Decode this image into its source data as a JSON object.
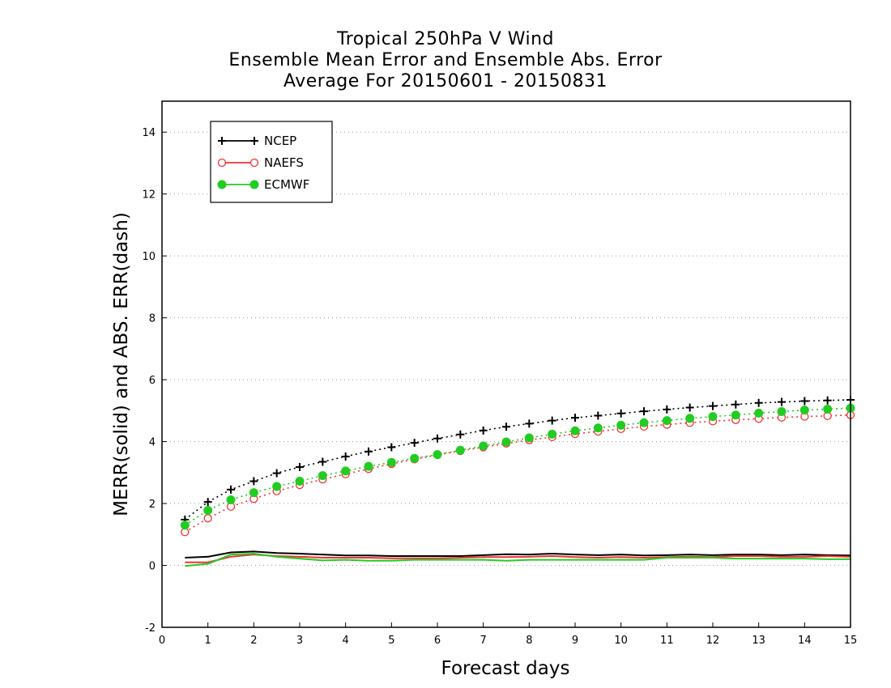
{
  "chart_data": {
    "type": "line",
    "title_lines": [
      "Tropical 250hPa V Wind",
      "Ensemble Mean Error and Ensemble Abs. Error",
      "Average For 20150601 - 20150831"
    ],
    "xlabel": "Forecast days",
    "ylabel": "MERR(solid) and ABS. ERR(dash)",
    "xlim": [
      0,
      15
    ],
    "ylim": [
      -2,
      15
    ],
    "xticks": [
      "0",
      "1",
      "2",
      "3",
      "4",
      "5",
      "6",
      "7",
      "8",
      "9",
      "10",
      "11",
      "12",
      "13",
      "14",
      "15"
    ],
    "yticks": [
      "-2",
      "0",
      "2",
      "4",
      "6",
      "8",
      "10",
      "12",
      "14"
    ],
    "grid": "horizontal dotted",
    "legend_position": "top-left",
    "x": [
      0.5,
      1,
      1.5,
      2,
      2.5,
      3,
      3.5,
      4,
      4.5,
      5,
      5.5,
      6,
      6.5,
      7,
      7.5,
      8,
      8.5,
      9,
      9.5,
      10,
      10.5,
      11,
      11.5,
      12,
      12.5,
      13,
      13.5,
      14,
      14.5,
      15
    ],
    "series": [
      {
        "name": "NCEP",
        "color": "#000000",
        "marker": "plus",
        "mean_error": [
          0.25,
          0.28,
          0.42,
          0.45,
          0.4,
          0.38,
          0.35,
          0.32,
          0.32,
          0.3,
          0.3,
          0.3,
          0.3,
          0.33,
          0.36,
          0.35,
          0.38,
          0.35,
          0.33,
          0.35,
          0.32,
          0.33,
          0.35,
          0.33,
          0.35,
          0.35,
          0.33,
          0.35,
          0.33,
          0.32
        ],
        "abs_error": [
          1.48,
          2.05,
          2.45,
          2.72,
          2.98,
          3.18,
          3.35,
          3.52,
          3.68,
          3.82,
          3.96,
          4.1,
          4.23,
          4.36,
          4.48,
          4.58,
          4.68,
          4.77,
          4.84,
          4.91,
          4.98,
          5.04,
          5.1,
          5.15,
          5.2,
          5.25,
          5.28,
          5.31,
          5.33,
          5.35
        ]
      },
      {
        "name": "NAEFS",
        "color": "#ee3333",
        "marker": "open-circle",
        "mean_error": [
          0.1,
          0.1,
          0.28,
          0.35,
          0.3,
          0.28,
          0.25,
          0.25,
          0.25,
          0.23,
          0.23,
          0.23,
          0.25,
          0.27,
          0.27,
          0.28,
          0.3,
          0.27,
          0.25,
          0.27,
          0.25,
          0.27,
          0.28,
          0.27,
          0.3,
          0.3,
          0.28,
          0.28,
          0.3,
          0.28
        ],
        "abs_error": [
          1.08,
          1.52,
          1.9,
          2.15,
          2.4,
          2.6,
          2.78,
          2.95,
          3.12,
          3.28,
          3.43,
          3.57,
          3.7,
          3.82,
          3.94,
          4.05,
          4.15,
          4.25,
          4.33,
          4.41,
          4.49,
          4.55,
          4.61,
          4.66,
          4.7,
          4.74,
          4.78,
          4.81,
          4.83,
          4.86
        ]
      },
      {
        "name": "ECMWF",
        "color": "#22cc22",
        "marker": "filled-circle",
        "mean_error": [
          -0.02,
          0.05,
          0.35,
          0.38,
          0.28,
          0.22,
          0.16,
          0.18,
          0.15,
          0.15,
          0.18,
          0.18,
          0.18,
          0.18,
          0.15,
          0.18,
          0.18,
          0.18,
          0.18,
          0.18,
          0.18,
          0.25,
          0.25,
          0.25,
          0.22,
          0.22,
          0.22,
          0.22,
          0.2,
          0.2
        ],
        "abs_error": [
          1.3,
          1.78,
          2.12,
          2.35,
          2.55,
          2.72,
          2.9,
          3.05,
          3.2,
          3.33,
          3.46,
          3.58,
          3.72,
          3.86,
          3.99,
          4.12,
          4.24,
          4.35,
          4.44,
          4.53,
          4.61,
          4.68,
          4.75,
          4.81,
          4.86,
          4.92,
          4.97,
          5.02,
          5.05,
          5.08
        ]
      }
    ]
  }
}
